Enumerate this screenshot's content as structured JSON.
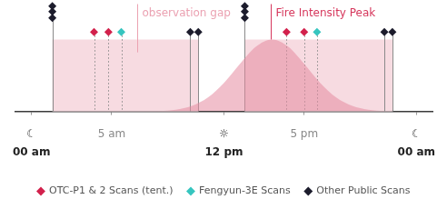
{
  "chart_data": {
    "type": "scatter",
    "xlim": [
      -1,
      25
    ],
    "xticks": [
      {
        "value": 0,
        "label": "☾\n00 am"
      },
      {
        "value": 5,
        "label": "5 am"
      },
      {
        "value": 12,
        "label": "☼\n12 pm"
      },
      {
        "value": 17,
        "label": "5 pm"
      },
      {
        "value": 24,
        "label": "☾\n00 am"
      }
    ],
    "ylim": [
      0,
      100
    ],
    "tick_labels": "x",
    "grid": false,
    "legend": "bottom",
    "series": [
      {
        "name": "OTC-P1 & 2 Scans (tent.)",
        "color": "#d2214c",
        "marker": "diamond",
        "line_style": "dotted",
        "x": [
          3.9,
          4.8,
          15.9,
          17.0
        ],
        "values": [
          74,
          74,
          74,
          74
        ]
      },
      {
        "name": "Fengyun-3E Scans",
        "color": "#36c5bf",
        "marker": "diamond",
        "line_style": "dotted",
        "x": [
          5.6,
          17.8
        ],
        "values": [
          74,
          74
        ]
      },
      {
        "name": "Other Public Scans",
        "color": "#1c1c2c",
        "marker": "diamond",
        "line_style": "solid",
        "x": [
          1.3,
          1.3,
          1.3,
          9.9,
          10.4,
          13.3,
          13.3,
          13.3,
          22.0,
          22.5
        ],
        "values": [
          87,
          93,
          98,
          74,
          74,
          87,
          93,
          98,
          74,
          74
        ]
      }
    ],
    "fire_intensity": {
      "color": "#e58aa0",
      "x": [
        0,
        5,
        6,
        7,
        8,
        9,
        10,
        11,
        12,
        13,
        14,
        15,
        16,
        17,
        18,
        19,
        20,
        21,
        22,
        23,
        24
      ],
      "values": [
        0,
        0,
        0,
        0.1,
        0.4,
        1.6,
        5.1,
        12.9,
        26.5,
        44.3,
        60.4,
        67,
        60.4,
        44.3,
        26.5,
        12.9,
        5.1,
        1.6,
        0.4,
        0.1,
        0
      ]
    },
    "gaps": {
      "color": "#f7dbe1",
      "ranges": [
        {
          "start": 1.3,
          "end": 10.4,
          "top": 67
        },
        {
          "start": 13.3,
          "end": 22.5,
          "top": 67
        }
      ]
    },
    "annotations": [
      {
        "text": "observation gap",
        "x": 6.6,
        "y": 55,
        "color": "#eba2b2"
      },
      {
        "text": "Fire Intensity Peak",
        "x": 14.9,
        "y": 67,
        "color": "#d6375c"
      }
    ]
  }
}
